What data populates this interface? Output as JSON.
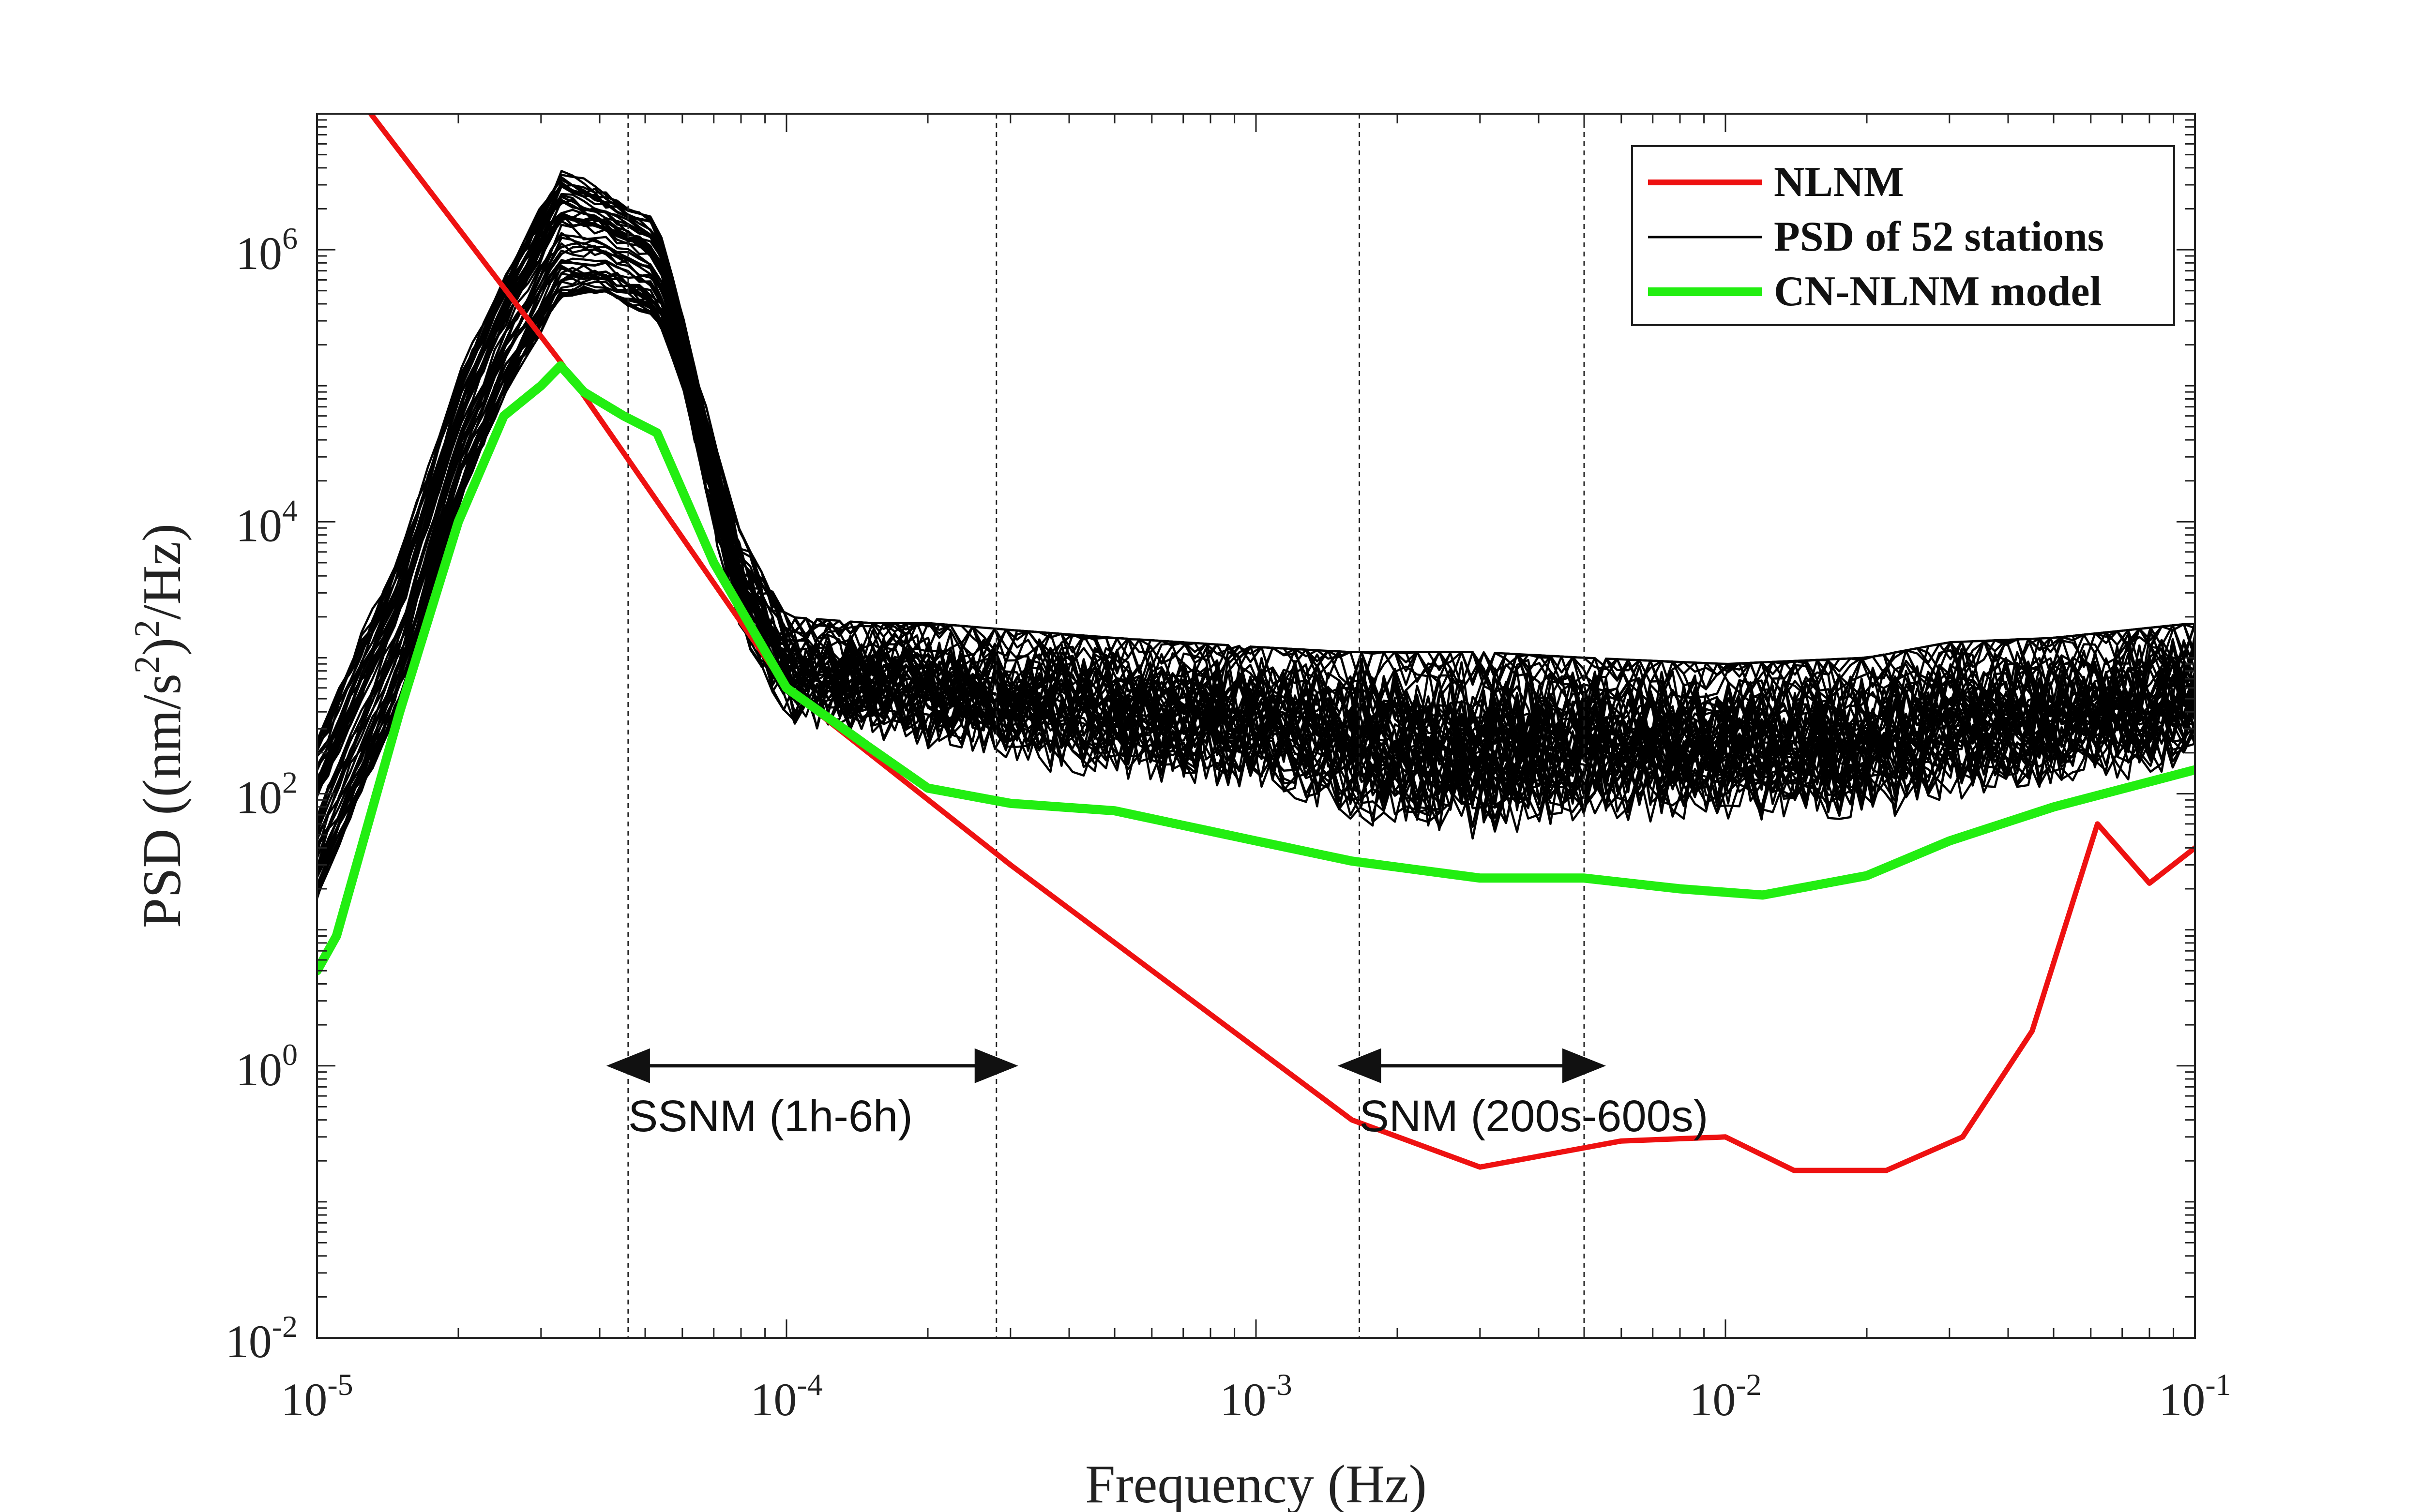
{
  "chart_data": {
    "type": "line",
    "title": "",
    "xlabel": "Frequency (Hz)",
    "ylabel_parts": [
      "PSD ((nm/s",
      "2",
      ")",
      "2",
      "/Hz)"
    ],
    "x_scale": "log",
    "y_scale": "log",
    "xlim": [
      1e-05,
      0.1
    ],
    "ylim": [
      0.01,
      10000000
    ],
    "x_ticks": [
      {
        "base": "10",
        "exp": "-5"
      },
      {
        "base": "10",
        "exp": "-4"
      },
      {
        "base": "10",
        "exp": "-3"
      },
      {
        "base": "10",
        "exp": "-2"
      },
      {
        "base": "10",
        "exp": "-1"
      }
    ],
    "y_ticks": [
      {
        "base": "10",
        "exp": "-2"
      },
      {
        "base": "10",
        "exp": "0"
      },
      {
        "base": "10",
        "exp": "2"
      },
      {
        "base": "10",
        "exp": "4"
      },
      {
        "base": "10",
        "exp": "6"
      }
    ],
    "legend": {
      "position": "top-right",
      "entries": [
        "NLNM",
        "PSD of 52 stations",
        "CN-NLNM model"
      ]
    },
    "colors": {
      "nlnm": "#ee1111",
      "stations": "#000000",
      "model": "#22ee11"
    },
    "station_count": 52,
    "series": [
      {
        "name": "NLNM",
        "x": [
          1.25e-05,
          3.3e-05,
          0.0001,
          0.0003,
          0.0016,
          0.003,
          0.006,
          0.01,
          0.014,
          0.022,
          0.032,
          0.045,
          0.062,
          0.08,
          0.1
        ],
        "y": [
          12000000,
          150000,
          600,
          30,
          0.4,
          0.18,
          0.28,
          0.3,
          0.17,
          0.17,
          0.3,
          1.8,
          60,
          22,
          40
        ]
      },
      {
        "name": "CN-NLNM model",
        "x": [
          1e-05,
          1.1e-05,
          1.5e-05,
          2e-05,
          2.5e-05,
          3e-05,
          3.3e-05,
          3.7e-05,
          4.5e-05,
          5.3e-05,
          7e-05,
          0.0001,
          0.00015,
          0.0002,
          0.0003,
          0.0005,
          0.001,
          0.0016,
          0.003,
          0.005,
          0.008,
          0.012,
          0.02,
          0.03,
          0.05,
          0.1
        ],
        "y": [
          5,
          9,
          400,
          10000,
          60000,
          100000,
          140000,
          90000,
          60000,
          45000,
          5000,
          600,
          220,
          110,
          85,
          75,
          45,
          32,
          24,
          24,
          20,
          18,
          25,
          45,
          80,
          150
        ]
      }
    ],
    "station_envelope": {
      "x": [
        1e-05,
        1.5e-05,
        2e-05,
        2.5e-05,
        3.3e-05,
        4e-05,
        5.3e-05,
        6e-05,
        7e-05,
        8e-05,
        0.0001,
        0.00015,
        0.0002,
        0.0003,
        0.0005,
        0.001,
        0.0016,
        0.003,
        0.005,
        0.01,
        0.02,
        0.03,
        0.05,
        0.1
      ],
      "low": [
        15,
        400,
        12000,
        80000,
        400000,
        450000,
        300000,
        100000,
        8000,
        1500,
        300,
        250,
        200,
        150,
        120,
        100,
        60,
        40,
        60,
        60,
        60,
        80,
        100,
        150
      ],
      "high": [
        400,
        8000,
        150000,
        800000,
        5000000,
        3500000,
        2000000,
        400000,
        40000,
        8000,
        2000,
        1800,
        1800,
        1600,
        1400,
        1200,
        1100,
        1100,
        1000,
        900,
        1000,
        1300,
        1400,
        1800
      ]
    },
    "reference_lines_x": [
      4.6e-05,
      0.00028,
      0.00166,
      0.005
    ],
    "annotations": [
      {
        "label": "SSNM (1h-6h)",
        "x_from": 4.6e-05,
        "x_to": 0.00028,
        "y": 1
      },
      {
        "label": "SNM (200s-600s)",
        "x_from": 0.00166,
        "x_to": 0.005,
        "y": 1
      }
    ]
  }
}
